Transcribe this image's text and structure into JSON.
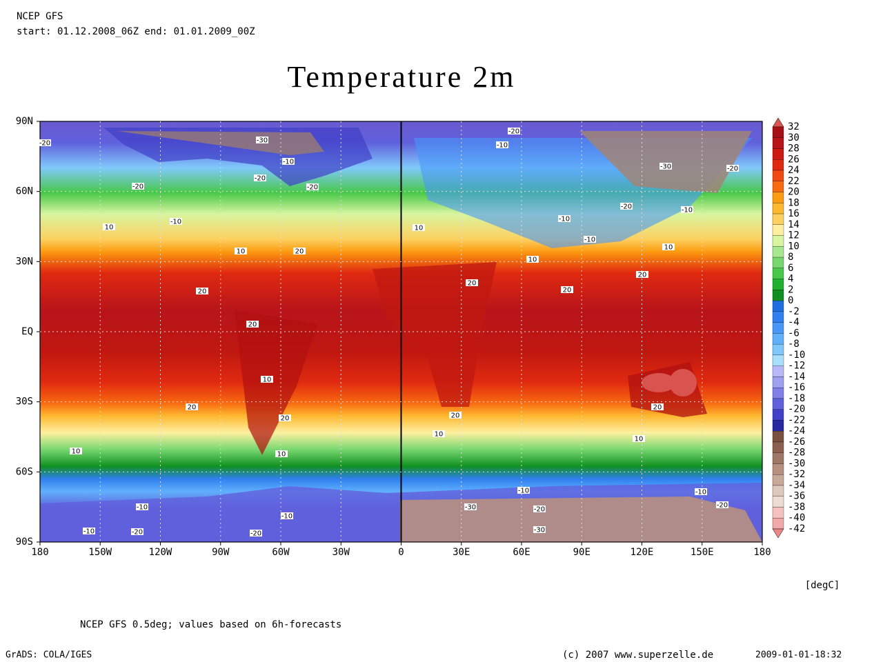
{
  "header": {
    "model": "NCEP GFS",
    "period": "start: 01.12.2008_06Z end: 01.01.2009_00Z"
  },
  "title": "Temperature 2m",
  "map": {
    "lon_ticks": [
      {
        "value": -180,
        "label": "180"
      },
      {
        "value": -150,
        "label": "150W"
      },
      {
        "value": -120,
        "label": "120W"
      },
      {
        "value": -90,
        "label": "90W"
      },
      {
        "value": -60,
        "label": "60W"
      },
      {
        "value": -30,
        "label": "30W"
      },
      0,
      {
        "value": 30,
        "label": "30E"
      },
      {
        "value": 60,
        "label": "60E"
      },
      {
        "value": 90,
        "label": "90E"
      },
      {
        "value": 120,
        "label": "120E"
      },
      {
        "value": 150,
        "label": "150E"
      },
      {
        "value": 180,
        "label": "180"
      }
    ],
    "lat_ticks": [
      {
        "value": 90,
        "label": "90N"
      },
      {
        "value": 60,
        "label": "60N"
      },
      {
        "value": 30,
        "label": "30N"
      },
      {
        "value": 0,
        "label": "EQ"
      },
      {
        "value": -30,
        "label": "30S"
      },
      {
        "value": -60,
        "label": "60S"
      },
      {
        "value": -90,
        "label": "90S"
      }
    ],
    "contour_labels": [
      -20,
      -30,
      -10,
      -20,
      -20,
      -20,
      10,
      -10,
      10,
      20,
      20,
      20,
      10,
      20,
      20,
      10,
      10,
      10,
      20,
      -20,
      -10,
      -30,
      -20,
      -20,
      -10,
      -10,
      -10,
      10,
      10,
      10,
      20,
      20,
      20,
      20,
      10,
      -10,
      -10,
      -20,
      -30,
      -20,
      -10,
      -10,
      -10,
      -20,
      -20,
      -30
    ]
  },
  "colorbar": {
    "levels": [
      32,
      30,
      28,
      26,
      24,
      22,
      20,
      18,
      16,
      14,
      12,
      10,
      8,
      6,
      4,
      2,
      0,
      -2,
      -4,
      -6,
      -8,
      -10,
      -12,
      -14,
      -16,
      -18,
      -20,
      -22,
      -24,
      -26,
      -28,
      -30,
      -32,
      -34,
      -36,
      -38,
      -40,
      -42
    ],
    "colors": [
      "#d9534f",
      "#a50f15",
      "#b8141a",
      "#cc1a10",
      "#e02a10",
      "#f04a10",
      "#f86a10",
      "#fc9a10",
      "#fdb830",
      "#fdd060",
      "#fef0a0",
      "#d8f5a0",
      "#a8e890",
      "#78d870",
      "#48c848",
      "#20b030",
      "#109020",
      "#1e70e0",
      "#3080f0",
      "#4898f8",
      "#60b0fc",
      "#80c8fc",
      "#a8e0fc",
      "#b8b8f8",
      "#a0a0f0",
      "#8080e8",
      "#6060dc",
      "#4040c8",
      "#2828a0",
      "#7a5040",
      "#8c6050",
      "#a07868",
      "#b89080",
      "#c8a898",
      "#dcc8bc",
      "#ecdcd4",
      "#f4c0c0",
      "#f0a8a8",
      "#e88888"
    ],
    "unit": "[degC]"
  },
  "footer": {
    "note": "NCEP GFS 0.5deg; values based on 6h-forecasts",
    "software": "GrADS: COLA/IGES",
    "copyright": "(c) 2007 www.superzelle.de",
    "timestamp": "2009-01-01-18:32"
  }
}
